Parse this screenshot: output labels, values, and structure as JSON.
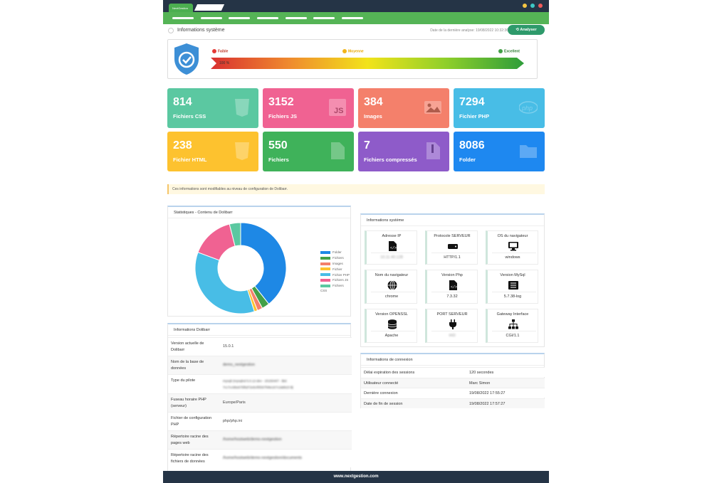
{
  "app": {
    "brand_tab": "NextGestion"
  },
  "header": {
    "title": "Informations système",
    "last_analysis": "Date de la dernière analyse: 19/08/2022 10:32:36",
    "analyse_button": "Analyser"
  },
  "health": {
    "levels": [
      "Faible",
      "Moyenne",
      "Excellent"
    ],
    "score_label": "100 %",
    "score_percent": 100
  },
  "cards": [
    {
      "value": "814",
      "label": "Fichiers CSS",
      "color": "#5bc8a1",
      "icon": "css3-icon"
    },
    {
      "value": "3152",
      "label": "Fichiers JS",
      "color": "#f06292",
      "icon": "js-icon"
    },
    {
      "value": "384",
      "label": "Images",
      "color": "#f4806b",
      "icon": "image-icon"
    },
    {
      "value": "7294",
      "label": "Fichier PHP",
      "color": "#48bde6",
      "icon": "php-icon"
    },
    {
      "value": "238",
      "label": "Fichier HTML",
      "color": "#fdc22f",
      "icon": "html5-icon"
    },
    {
      "value": "550",
      "label": "Fichiers",
      "color": "#3fb25a",
      "icon": "file-icon"
    },
    {
      "value": "7",
      "label": "Fichiers compressés",
      "color": "#8e5bc9",
      "icon": "zip-icon"
    },
    {
      "value": "8086",
      "label": "Folder",
      "color": "#1e88f0",
      "icon": "folder-icon"
    }
  ],
  "notice": "Ces informations sont modifiables au niveau de configuration de Dolibarr.",
  "stats_panel": {
    "title": "Statistiques - Contenu de Dolibarr"
  },
  "chart_data": {
    "type": "pie",
    "categories": [
      "Folder",
      "Fichiers",
      "Images",
      "Fichier HTML",
      "Fichier PHP",
      "Fichiers JS",
      "Fichiers CSS"
    ],
    "values": [
      8086,
      550,
      384,
      238,
      7294,
      3152,
      814
    ],
    "colors": [
      "#1e88e5",
      "#43a047",
      "#f4806b",
      "#fdc22f",
      "#48bde6",
      "#f06292",
      "#5bc8a1"
    ],
    "legend_position": "right",
    "donut": true
  },
  "dolibarr_panel": {
    "title": "Informations Dolibarr",
    "rows": [
      {
        "key": "Version actuelle de Dolibarr",
        "value": "15.0.1"
      },
      {
        "key": "Nom de la base de données",
        "value": "demo_nextgestion"
      },
      {
        "key": "Type du pilote",
        "value": "mysqli (mysqlnd 5.0.12-dev - 20150407 - $Id: 7cc7cc96e675f6d72e5cf0f267f48e167c2abb23 $)"
      },
      {
        "key": "Fuseau horaire PHP (serveur)",
        "value": "Europe/Paris"
      },
      {
        "key": "Fichier de configuration PHP",
        "value": "php/php.ini"
      },
      {
        "key": "Répertoire racine des pages web",
        "value": "/home/hostweb/demo-nextgestion"
      },
      {
        "key": "Répertoire racine des fichiers de données",
        "value": "/home/hostweb/demo-nextgestion/documents"
      }
    ]
  },
  "system_panel": {
    "title": "Informations système",
    "cells": [
      {
        "title": "Adresse IP",
        "value": "10.11.40.128",
        "icon": "code-file-icon"
      },
      {
        "title": "Protocole SERVEUR",
        "value": "HTTP/1.1",
        "icon": "server-icon"
      },
      {
        "title": "OS du navigateur",
        "value": "windows",
        "icon": "monitor-icon"
      },
      {
        "title": "Nom du navigateur",
        "value": "chrome",
        "icon": "globe-icon"
      },
      {
        "title": "Version Php",
        "value": "7.3.32",
        "icon": "code-file-icon"
      },
      {
        "title": "Version MySql",
        "value": "5.7.38-log",
        "icon": "table-icon"
      },
      {
        "title": "Version OPENSSL",
        "value": "Apache",
        "icon": "database-icon"
      },
      {
        "title": "PORT SERVEUR",
        "value": "443",
        "icon": "plug-icon"
      },
      {
        "title": "Gateway Interface",
        "value": "CGI/1.1",
        "icon": "sitemap-icon"
      }
    ]
  },
  "connection_panel": {
    "title": "Informations de connexion",
    "rows": [
      {
        "key": "Délai expiration des sessions",
        "value": "120 secondes"
      },
      {
        "key": "Utilisateur connecté",
        "value": "Marc Simon"
      },
      {
        "key": "Dernière connexion",
        "value": "19/08/2022 17:55:27"
      },
      {
        "key": "Date de fin de session",
        "value": "19/08/2022 17:57:27"
      }
    ]
  },
  "footer": {
    "text": "www.nextgestion.com"
  }
}
